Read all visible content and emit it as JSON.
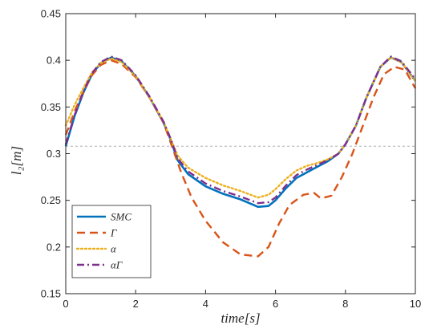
{
  "chart_data": {
    "type": "line",
    "title": "",
    "xlabel": "time[s]",
    "ylabel": "l₂[m]",
    "xlim": [
      0,
      10
    ],
    "ylim": [
      0.15,
      0.45
    ],
    "xticks": [
      0,
      2,
      4,
      6,
      8,
      10
    ],
    "yticks": [
      0.15,
      0.2,
      0.25,
      0.3,
      0.35,
      0.4,
      0.45
    ],
    "xtick_labels": [
      "0",
      "2",
      "4",
      "6",
      "8",
      "10"
    ],
    "ytick_labels": [
      "0.15",
      "0.2",
      "0.25",
      "0.3",
      "0.35",
      "0.4",
      "0.45"
    ],
    "grid": false,
    "legend_position": "bottom-left",
    "reference_line": {
      "y": 0.308,
      "color": "#b0b0b0",
      "style": "dashed"
    },
    "series": [
      {
        "name": "SMC",
        "color": "#0072BD",
        "dash": "solid",
        "x": [
          0,
          0.25,
          0.5,
          0.75,
          1.0,
          1.3,
          1.6,
          2.0,
          2.4,
          2.8,
          3.0,
          3.2,
          3.5,
          4.0,
          4.5,
          5.0,
          5.5,
          5.8,
          6.0,
          6.3,
          6.6,
          6.9,
          7.2,
          7.5,
          7.8,
          8.0,
          8.3,
          8.6,
          9.0,
          9.3,
          9.6,
          10.0
        ],
        "y": [
          0.308,
          0.34,
          0.365,
          0.385,
          0.397,
          0.403,
          0.399,
          0.383,
          0.36,
          0.333,
          0.315,
          0.293,
          0.278,
          0.265,
          0.257,
          0.251,
          0.243,
          0.244,
          0.25,
          0.263,
          0.274,
          0.28,
          0.286,
          0.292,
          0.3,
          0.31,
          0.33,
          0.36,
          0.393,
          0.403,
          0.398,
          0.378
        ]
      },
      {
        "name": "Γ",
        "color": "#D95319",
        "dash": "dashed",
        "x": [
          0,
          0.25,
          0.5,
          0.75,
          1.0,
          1.3,
          1.6,
          2.0,
          2.4,
          2.8,
          3.0,
          3.3,
          3.6,
          4.0,
          4.5,
          5.0,
          5.5,
          5.8,
          6.1,
          6.4,
          6.8,
          7.1,
          7.3,
          7.6,
          7.9,
          8.2,
          8.5,
          8.8,
          9.1,
          9.4,
          9.7,
          10.0
        ],
        "y": [
          0.32,
          0.345,
          0.366,
          0.384,
          0.395,
          0.4,
          0.396,
          0.382,
          0.36,
          0.333,
          0.312,
          0.28,
          0.253,
          0.228,
          0.205,
          0.192,
          0.19,
          0.2,
          0.225,
          0.245,
          0.256,
          0.258,
          0.252,
          0.255,
          0.275,
          0.3,
          0.33,
          0.36,
          0.385,
          0.393,
          0.39,
          0.37
        ]
      },
      {
        "name": "α",
        "color": "#EDB120",
        "dash": "dotted",
        "x": [
          0,
          0.25,
          0.5,
          0.75,
          1.0,
          1.3,
          1.6,
          2.0,
          2.4,
          2.8,
          3.0,
          3.2,
          3.5,
          4.0,
          4.5,
          5.0,
          5.5,
          5.8,
          6.0,
          6.3,
          6.6,
          6.9,
          7.2,
          7.5,
          7.8,
          8.0,
          8.3,
          8.6,
          9.0,
          9.3,
          9.6,
          10.0
        ],
        "y": [
          0.33,
          0.352,
          0.37,
          0.387,
          0.397,
          0.402,
          0.398,
          0.383,
          0.36,
          0.334,
          0.316,
          0.298,
          0.285,
          0.274,
          0.266,
          0.26,
          0.253,
          0.256,
          0.262,
          0.273,
          0.282,
          0.287,
          0.29,
          0.294,
          0.3,
          0.31,
          0.33,
          0.36,
          0.393,
          0.403,
          0.398,
          0.378
        ]
      },
      {
        "name": "αΓ",
        "color": "#7E2F8E",
        "dash": "dashdot",
        "x": [
          0,
          0.25,
          0.5,
          0.75,
          1.0,
          1.3,
          1.6,
          2.0,
          2.4,
          2.8,
          3.0,
          3.2,
          3.5,
          4.0,
          4.5,
          5.0,
          5.5,
          5.8,
          6.0,
          6.3,
          6.6,
          6.9,
          7.2,
          7.5,
          7.8,
          8.0,
          8.3,
          8.6,
          9.0,
          9.3,
          9.6,
          10.0
        ],
        "y": [
          0.31,
          0.341,
          0.366,
          0.386,
          0.398,
          0.404,
          0.4,
          0.384,
          0.361,
          0.334,
          0.316,
          0.295,
          0.281,
          0.268,
          0.26,
          0.254,
          0.247,
          0.248,
          0.253,
          0.266,
          0.277,
          0.283,
          0.288,
          0.293,
          0.3,
          0.31,
          0.33,
          0.36,
          0.393,
          0.404,
          0.399,
          0.38
        ]
      }
    ]
  }
}
